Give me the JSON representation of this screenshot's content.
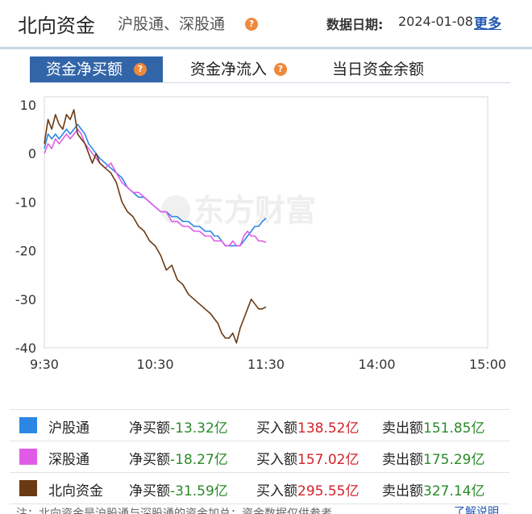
{
  "header": {
    "title": "北向资金",
    "subtitle": "沪股通、深股通",
    "date_label": "数据日期:",
    "date_value": "2024-01-08",
    "more_link": "更多"
  },
  "tabs": [
    {
      "label": "资金净买额",
      "active": true
    },
    {
      "label": "资金净流入",
      "active": false
    },
    {
      "label": "当日资金余额",
      "active": false
    }
  ],
  "watermark": "东方财富",
  "chart_data": {
    "type": "line",
    "x_ticks": [
      "9:30",
      "10:30",
      "11:30",
      "14:00",
      "15:00"
    ],
    "y_ticks": [
      10,
      0,
      -10,
      -20,
      -30,
      -40
    ],
    "ylim": [
      -40,
      10
    ],
    "xlim_minutes": [
      0,
      240
    ],
    "grid": false,
    "series": [
      {
        "name": "沪股通",
        "color": "#2b87e3",
        "x": [
          0,
          2,
          4,
          6,
          8,
          10,
          12,
          14,
          16,
          18,
          20,
          22,
          24,
          26,
          28,
          30,
          33,
          36,
          39,
          42,
          45,
          48,
          51,
          54,
          57,
          60,
          63,
          66,
          69,
          72,
          75,
          78,
          81,
          84,
          87,
          90,
          92,
          94,
          96,
          98,
          100,
          102,
          104,
          106,
          108,
          110,
          112,
          114,
          116,
          118,
          120
        ],
        "values": [
          1,
          4,
          3,
          4,
          3,
          4,
          5,
          4,
          5,
          6,
          5,
          4,
          2,
          1,
          0,
          -1,
          -2,
          -3,
          -4,
          -5,
          -7,
          -8,
          -9,
          -9,
          -10,
          -11,
          -12,
          -12,
          -13,
          -13,
          -14,
          -14,
          -15,
          -15,
          -16,
          -16,
          -17,
          -17,
          -18,
          -19,
          -19,
          -19,
          -19,
          -19,
          -18,
          -17,
          -16,
          -15,
          -15,
          -14,
          -13.3
        ]
      },
      {
        "name": "深股通",
        "color": "#e05ce8",
        "x": [
          0,
          2,
          4,
          6,
          8,
          10,
          12,
          14,
          16,
          18,
          20,
          22,
          24,
          26,
          28,
          30,
          33,
          36,
          39,
          42,
          45,
          48,
          51,
          54,
          57,
          60,
          63,
          66,
          69,
          72,
          75,
          78,
          81,
          84,
          87,
          90,
          92,
          94,
          96,
          98,
          100,
          102,
          104,
          106,
          108,
          110,
          112,
          114,
          116,
          118,
          120
        ],
        "values": [
          0,
          2,
          1,
          3,
          2,
          3,
          4,
          3,
          4,
          5,
          4,
          2,
          1,
          0,
          -1,
          -2,
          -3,
          -2,
          -4,
          -6,
          -7,
          -8,
          -8,
          -9,
          -10,
          -11,
          -12,
          -12,
          -14,
          -14,
          -15,
          -15,
          -16,
          -16,
          -17,
          -17,
          -18,
          -18,
          -18,
          -19,
          -19,
          -18,
          -19,
          -19,
          -17,
          -16,
          -17,
          -17,
          -18,
          -18,
          -18.3
        ]
      },
      {
        "name": "北向资金",
        "color": "#6b3a12",
        "x": [
          0,
          2,
          4,
          6,
          8,
          10,
          12,
          14,
          16,
          18,
          20,
          22,
          24,
          26,
          28,
          30,
          33,
          36,
          39,
          42,
          45,
          48,
          51,
          54,
          57,
          60,
          63,
          66,
          69,
          72,
          75,
          78,
          81,
          84,
          87,
          90,
          92,
          94,
          96,
          98,
          100,
          102,
          104,
          106,
          108,
          110,
          112,
          114,
          116,
          118,
          120
        ],
        "values": [
          2,
          7,
          5,
          8,
          6,
          5,
          8,
          7,
          9,
          4,
          3,
          2,
          0,
          -2,
          0,
          -2,
          -3,
          -4,
          -6,
          -10,
          -12,
          -13,
          -15,
          -16,
          -18,
          -19,
          -21,
          -24,
          -23,
          -26,
          -27,
          -29,
          -30,
          -31,
          -32,
          -33,
          -34,
          -35,
          -37,
          -38,
          -38,
          -37,
          -39,
          -36,
          -34,
          -32,
          -30,
          -31,
          -32,
          -32,
          -31.6
        ]
      }
    ]
  },
  "legend": [
    {
      "name": "沪股通",
      "color": "#2b87e3",
      "net_label": "净买额",
      "net_value": "-13.32亿",
      "buy_label": "买入额",
      "buy_value": "138.52亿",
      "sell_label": "卖出额",
      "sell_value": "151.85亿"
    },
    {
      "name": "深股通",
      "color": "#e05ce8",
      "net_label": "净买额",
      "net_value": "-18.27亿",
      "buy_label": "买入额",
      "buy_value": "157.02亿",
      "sell_label": "卖出额",
      "sell_value": "175.29亿"
    },
    {
      "name": "北向资金",
      "color": "#6b3a12",
      "net_label": "净买额",
      "net_value": "-31.59亿",
      "buy_label": "买入额",
      "buy_value": "295.55亿",
      "sell_label": "卖出额",
      "sell_value": "327.14亿"
    }
  ],
  "footnote": "注：北向资金是沪股通与深股通的资金加总；资金数据仅供参考",
  "footnote_link": "了解说明"
}
